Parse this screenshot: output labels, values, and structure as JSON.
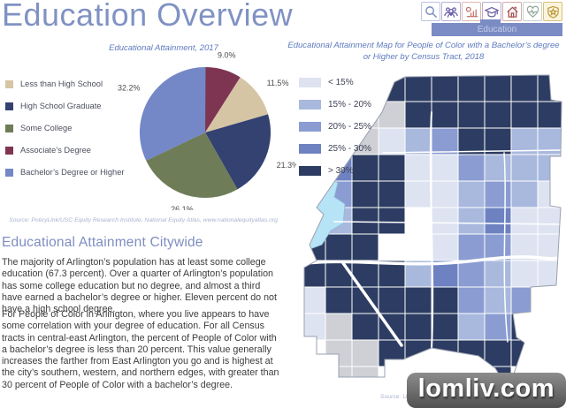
{
  "header": {
    "title": "Education Overview",
    "active_tab_label": "Education",
    "banner_color": "#7b8bc4",
    "nav_icons": [
      {
        "name": "search",
        "color": "#7689c0",
        "border": "#bcc5e0",
        "bg": "#ffffff"
      },
      {
        "name": "demographics",
        "color": "#6a5da8",
        "border": "#b6aed6",
        "bg": "#ffffff"
      },
      {
        "name": "economy",
        "color": "#c4766f",
        "border": "#e0b8b3",
        "bg": "#ffffff"
      },
      {
        "name": "education",
        "color": "#6c5fa5",
        "border": "#b6aed6",
        "bg": "#ffffff"
      },
      {
        "name": "housing",
        "color": "#a84f4f",
        "border": "#d8a9a9",
        "bg": "#ffffff"
      },
      {
        "name": "health",
        "color": "#93a89b",
        "border": "#c8d4cc",
        "bg": "#ffffff"
      },
      {
        "name": "safety",
        "color": "#c09a3e",
        "border": "#d9c27a",
        "bg": "#fbf4dd"
      }
    ]
  },
  "chart_data": [
    {
      "type": "pie",
      "title": "Educational Attainment, 2017",
      "source": "Source: PolicyLink/USC Equity Research Institute, National Equity Atlas, www.nationalequityatlas.org",
      "slices": [
        {
          "label": "Associate’s Degree",
          "value": 9.0,
          "color": "#7e3551"
        },
        {
          "label": "Less than High School",
          "value": 11.5,
          "color": "#d6c5a4"
        },
        {
          "label": "High School Graduate",
          "value": 21.3,
          "color": "#344271"
        },
        {
          "label": "Some College",
          "value": 26.1,
          "color": "#6e7c58"
        },
        {
          "label": "Bachelor’s Degree or Higher",
          "value": 32.2,
          "color": "#7487c7"
        }
      ],
      "legend_order": [
        1,
        2,
        3,
        0,
        4
      ],
      "start_angle_deg": 0,
      "direction": "clockwise",
      "labels_shown": [
        "9.0%",
        "11.5%",
        "21.3%",
        "26.1%",
        "32.2%"
      ]
    },
    {
      "type": "heatmap",
      "subtype": "choropleth-map",
      "title": "Educational Attainment Map for People of Color with a Bachelor’s degree or Higher by Census Tract, 2018",
      "source": "Source: U.S. Census Bureau, 2018",
      "legend": [
        {
          "label": "< 15%",
          "key": "P"
        },
        {
          "label": "15% - 20%",
          "key": "L"
        },
        {
          "label": "20% - 25%",
          "key": "B"
        },
        {
          "label": "25% - 30%",
          "key": "M"
        },
        {
          "label": "> 30%",
          "key": "D"
        }
      ],
      "palette": {
        "P": "#dde3f0",
        "L": "#a9b8dd",
        "B": "#8a9cd1",
        "M": "#6e82c2",
        "D": "#2d3c62",
        "G": "#cfd0d6",
        "W": "#ffffff",
        "K": "#b6e4f6"
      },
      "grid": [
        "XXXDDDDDDD",
        "XXGGDDDDDD",
        "XXGPLBDDLL",
        "XMDDPPBLLL",
        "LBDDPPLBLP",
        "LLDDWPLMPP",
        "DDDWWPBBPP",
        "DDDDLMBLPP",
        "PDDDDDBLBP",
        "PGDDDDLBDX",
        "XGGDDDDDDX",
        "XGGXDDDDXX"
      ]
    }
  ],
  "text_section": {
    "heading": "Educational Attainment Citywide",
    "para1": "The majority of Arlington’s population has at least some college education (67.3 percent). Over a quarter of Arlington’s population has some college education but no degree, and almost a third have earned a bachelor’s degree or higher. Eleven percent do not have a high school degree.",
    "para2": "For People of Color in Arlington, where you live appears to have some correlation with your degree of education. For all Census tracts in central-east Arlington, the percent of People of Color with a bachelor’s degree is less than 20 percent. This value generally increases the farther from East Arlington you go and is highest at the city’s southern, western, and northern edges, with greater than 30 percent of People of Color with a bachelor’s degree."
  },
  "watermark": "lomliv.com"
}
